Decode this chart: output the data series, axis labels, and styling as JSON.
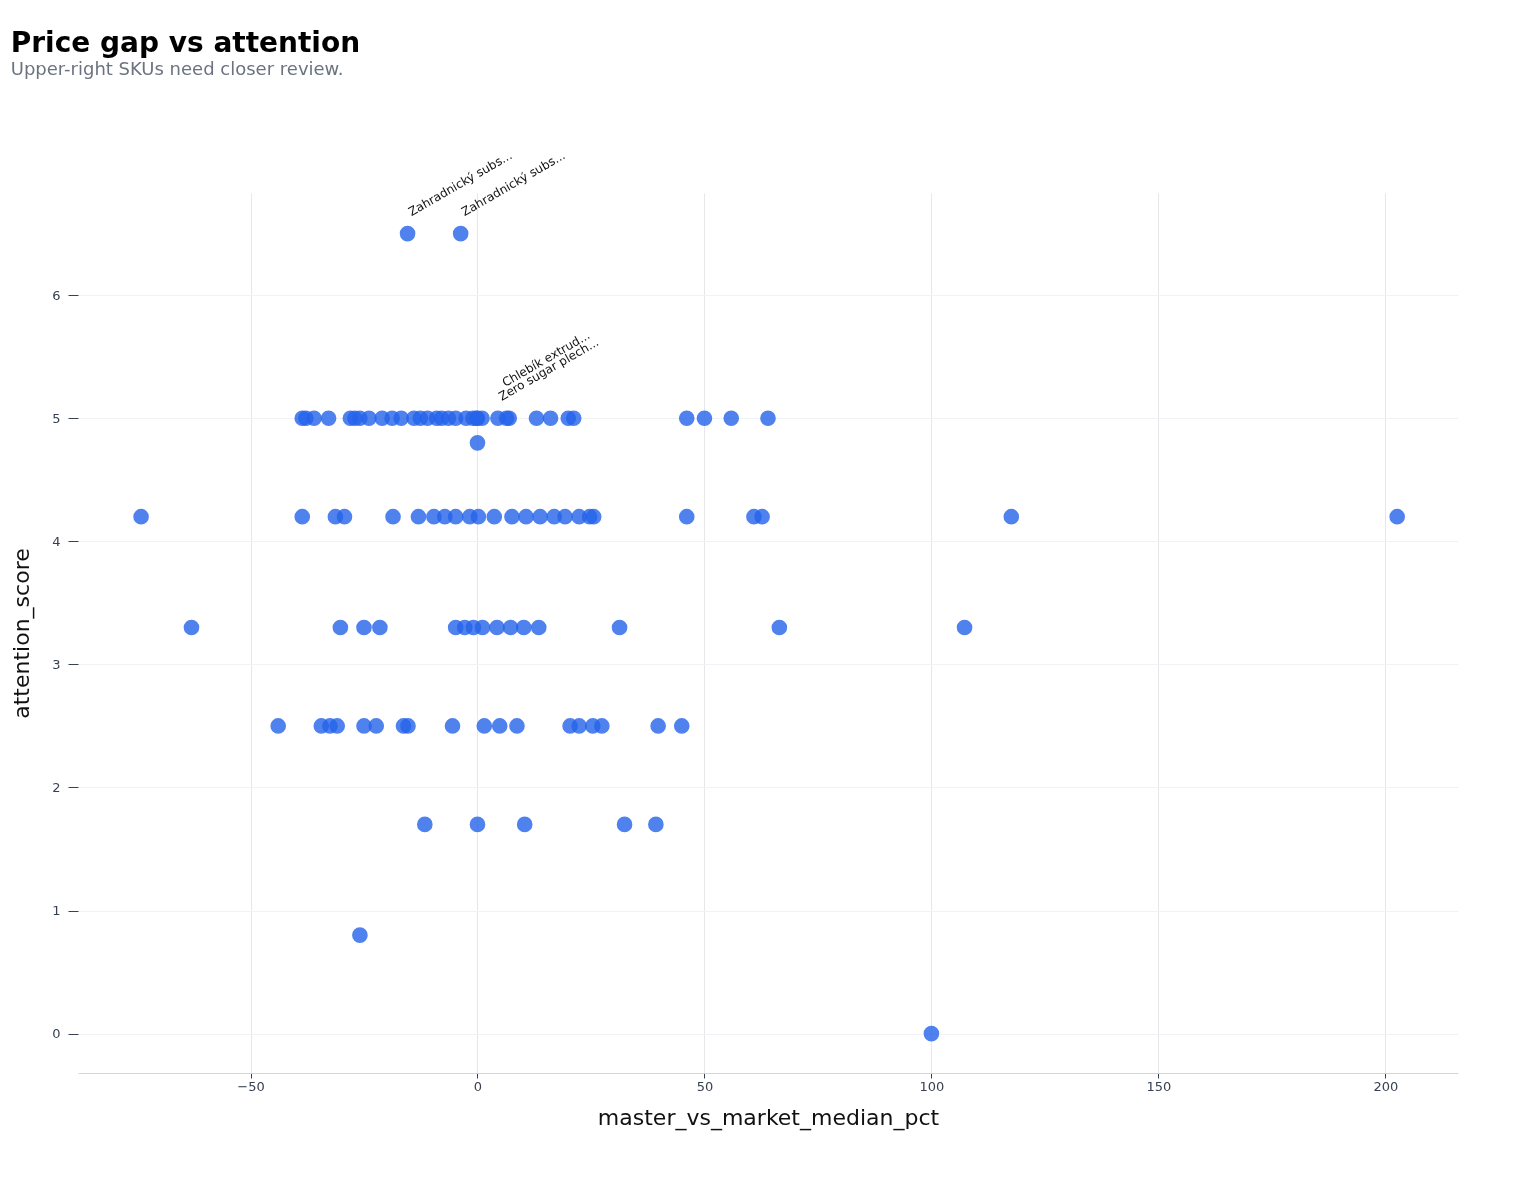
{
  "chart_data": {
    "type": "scatter",
    "title": "Price gap vs attention",
    "subtitle": "Upper-right SKUs need closer review.",
    "xlabel": "master_vs_market_median_pct",
    "ylabel": "attention_score",
    "x": [
      -15.4,
      -3.7,
      -38.6,
      -37.8,
      -36,
      -32.8,
      -28,
      -27,
      -25.9,
      -23.9,
      -21,
      -18.8,
      -16.8,
      -14,
      -12.6,
      -11,
      -9,
      -7.9,
      -6.4,
      -4.8,
      -2.5,
      -1,
      -0.2,
      0,
      1,
      4.5,
      6.4,
      7,
      13,
      16.1,
      20,
      21.2,
      46.1,
      50,
      55.9,
      64,
      0,
      -74.1,
      -38.6,
      -31.3,
      -29.3,
      -18.6,
      -13,
      -9.6,
      -7.2,
      -4.8,
      -1.7,
      0.2,
      3.7,
      7.6,
      10.7,
      13.8,
      16.9,
      19.3,
      22.4,
      24.7,
      25.6,
      46.1,
      60.9,
      62.7,
      117.6,
      202.6,
      -63,
      -30.2,
      -25,
      -21.5,
      -4.8,
      -2.8,
      -0.9,
      1.1,
      4.3,
      7.3,
      10.2,
      13.5,
      31.3,
      66.5,
      107.3,
      -43.9,
      -34.4,
      -32.5,
      -30.9,
      -25,
      -22.3,
      -16.3,
      -15.3,
      -5.5,
      1.5,
      4.9,
      8.7,
      20.4,
      22.4,
      25.4,
      27.4,
      39.8,
      45,
      -11.6,
      0,
      10.4,
      32.4,
      39.3,
      -25.9,
      100
    ],
    "values": [
      6.5,
      6.5,
      5,
      5,
      5,
      5,
      5,
      5,
      5,
      5,
      5,
      5,
      5,
      5,
      5,
      5,
      5,
      5,
      5,
      5,
      5,
      5,
      5,
      5,
      5,
      5,
      5,
      5,
      5,
      5,
      5,
      5,
      5,
      5,
      5,
      5,
      4.8,
      4.2,
      4.2,
      4.2,
      4.2,
      4.2,
      4.2,
      4.2,
      4.2,
      4.2,
      4.2,
      4.2,
      4.2,
      4.2,
      4.2,
      4.2,
      4.2,
      4.2,
      4.2,
      4.2,
      4.2,
      4.2,
      4.2,
      4.2,
      4.2,
      4.2,
      3.3,
      3.3,
      3.3,
      3.3,
      3.3,
      3.3,
      3.3,
      3.3,
      3.3,
      3.3,
      3.3,
      3.3,
      3.3,
      3.3,
      3.3,
      2.5,
      2.5,
      2.5,
      2.5,
      2.5,
      2.5,
      2.5,
      2.5,
      2.5,
      2.5,
      2.5,
      2.5,
      2.5,
      2.5,
      2.5,
      2.5,
      2.5,
      2.5,
      1.7,
      1.7,
      1.7,
      1.7,
      1.7,
      0.8,
      0
    ],
    "color": "#2563eb",
    "marker": "circle",
    "grid": true,
    "xlim": [
      -88,
      216
    ],
    "ylim": [
      -0.32,
      6.83
    ],
    "xticks": [
      -50,
      0,
      50,
      100,
      150,
      200
    ],
    "yticks": [
      {
        "value": 0,
        "label": "0"
      },
      {
        "value": 1,
        "label": "1"
      },
      {
        "value": 2,
        "label": "2"
      },
      {
        "value": 3,
        "label": "3"
      },
      {
        "value": 4,
        "label": "4"
      },
      {
        "value": 5,
        "label": "5"
      },
      {
        "value": 6,
        "label": "6"
      }
    ],
    "annotations": [
      {
        "text": "Zahradnický subs...",
        "x": -15.4,
        "y": 6.5
      },
      {
        "text": "Zahradnický subs...",
        "x": -3.7,
        "y": 6.5
      },
      {
        "text": "Zero sugar plech...",
        "x": 4.5,
        "y": 5
      },
      {
        "text": "Chlebík extrud...",
        "x": 7,
        "y": 5
      }
    ]
  }
}
